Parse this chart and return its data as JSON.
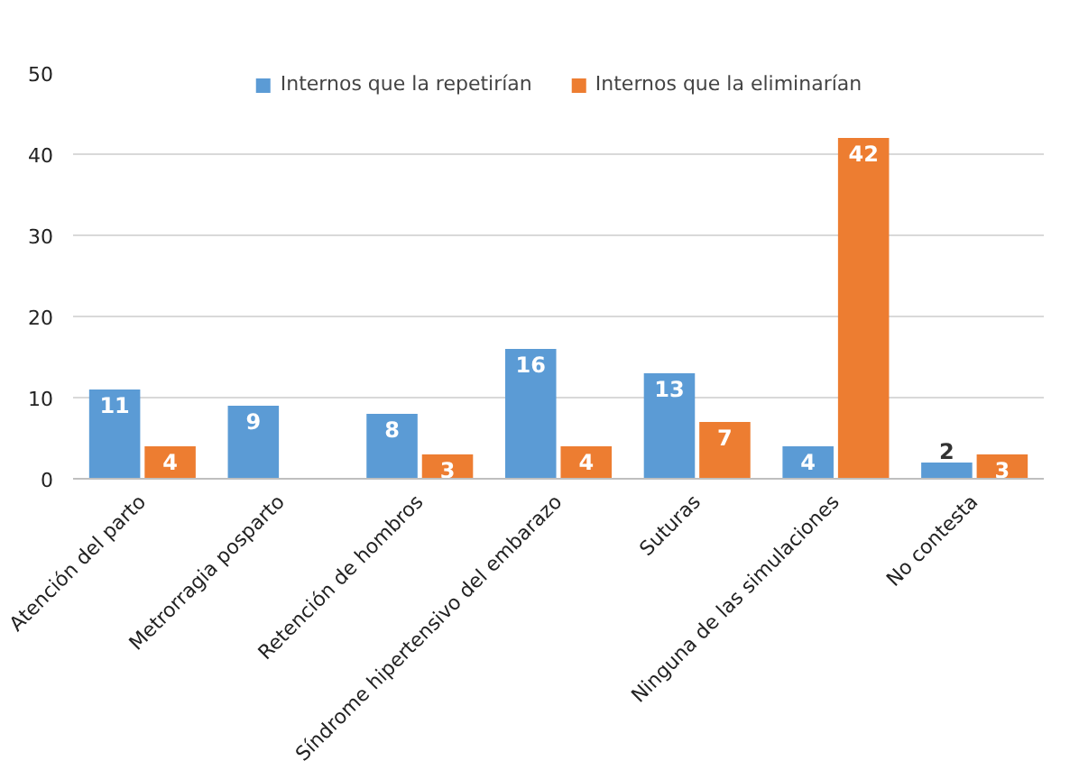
{
  "chart_data": {
    "type": "bar",
    "categories": [
      "Atención del parto",
      "Metrorragia posparto",
      "Retención de hombros",
      "Síndrome hipertensivo del embarazo",
      "Suturas",
      "Ninguna de las simulaciones",
      "No contesta"
    ],
    "series": [
      {
        "name": "Internos que la repetirían",
        "color": "#5b9bd5",
        "values": [
          11,
          9,
          8,
          16,
          13,
          4,
          2
        ],
        "value_labels": [
          "11",
          "9",
          "8",
          "16",
          "13",
          "4",
          "2"
        ]
      },
      {
        "name": "Internos que la eliminarían",
        "color": "#ed7d31",
        "values": [
          4,
          0,
          3,
          4,
          7,
          42,
          3
        ],
        "value_labels": [
          "4",
          null,
          "3",
          "4",
          "7",
          "42",
          "3"
        ]
      }
    ],
    "ylim": [
      0,
      50
    ],
    "yticks": [
      0,
      10,
      20,
      30,
      40,
      50
    ],
    "grid": "y",
    "legend": "top"
  }
}
